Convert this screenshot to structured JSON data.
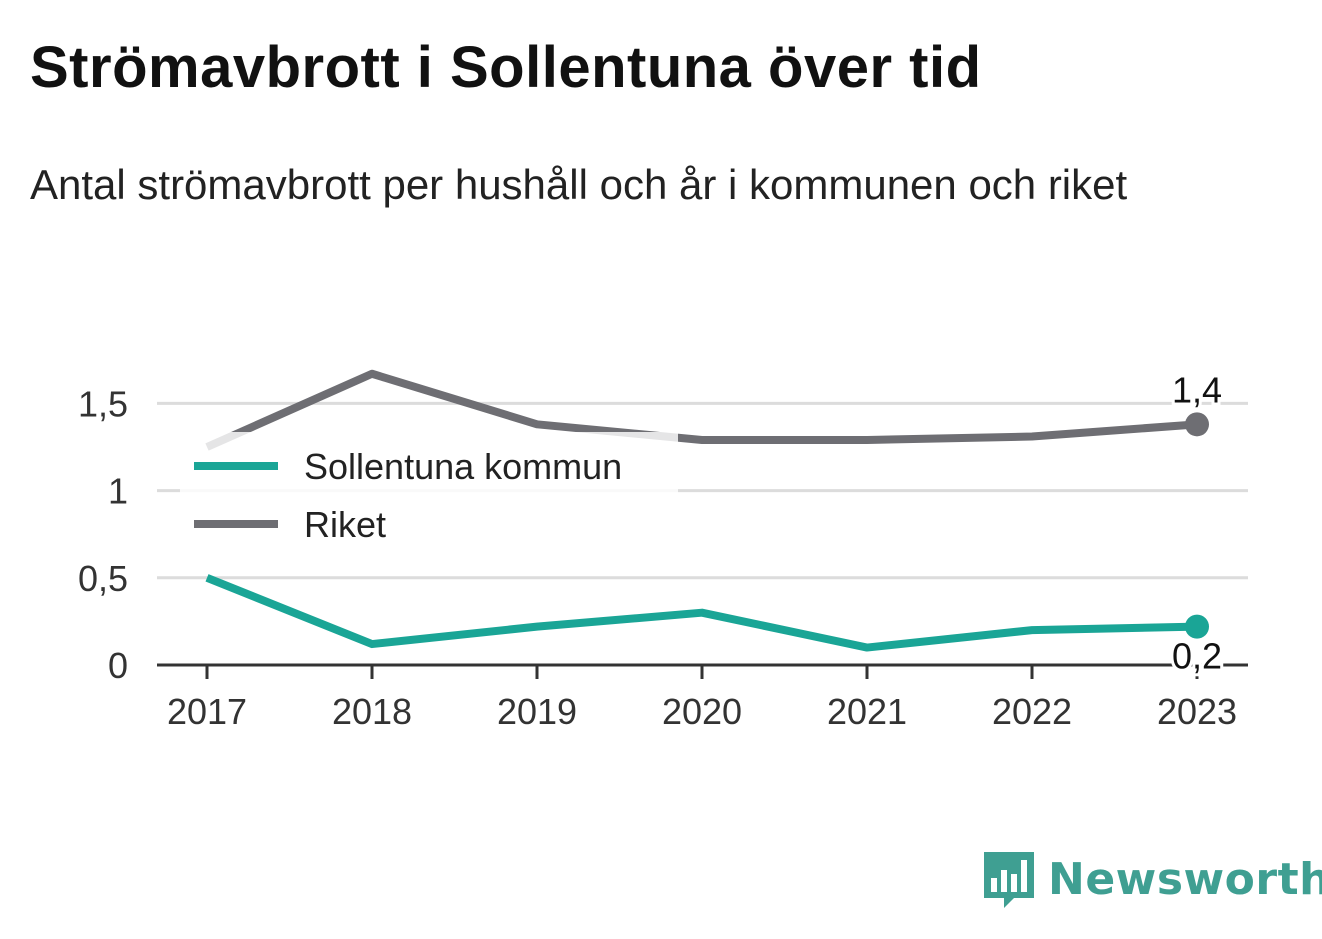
{
  "title": "Strömavbrott i Sollentuna över tid",
  "subtitle": "Antal strömavbrott per hushåll och år i kommunen och riket",
  "brand": {
    "name": "Newsworthy",
    "color": "#3f9f92",
    "icon": "bar-chart-speech-bubble-icon"
  },
  "chart_data": {
    "type": "line",
    "x": [
      "2017",
      "2018",
      "2019",
      "2020",
      "2021",
      "2022",
      "2023"
    ],
    "yticks": [
      "0",
      "0,5",
      "1",
      "1,5"
    ],
    "ylim": [
      0,
      1.6
    ],
    "grid": true,
    "legend_position": "top-left",
    "series": [
      {
        "name": "Sollentuna kommun",
        "color": "#1aa596",
        "values": [
          0.5,
          0.12,
          0.22,
          0.3,
          0.1,
          0.2,
          0.22
        ],
        "end_label": "0,2"
      },
      {
        "name": "Riket",
        "color": "#6e6e73",
        "values": [
          1.25,
          1.67,
          1.38,
          1.29,
          1.29,
          1.31,
          1.38
        ],
        "end_label": "1,4"
      }
    ]
  }
}
